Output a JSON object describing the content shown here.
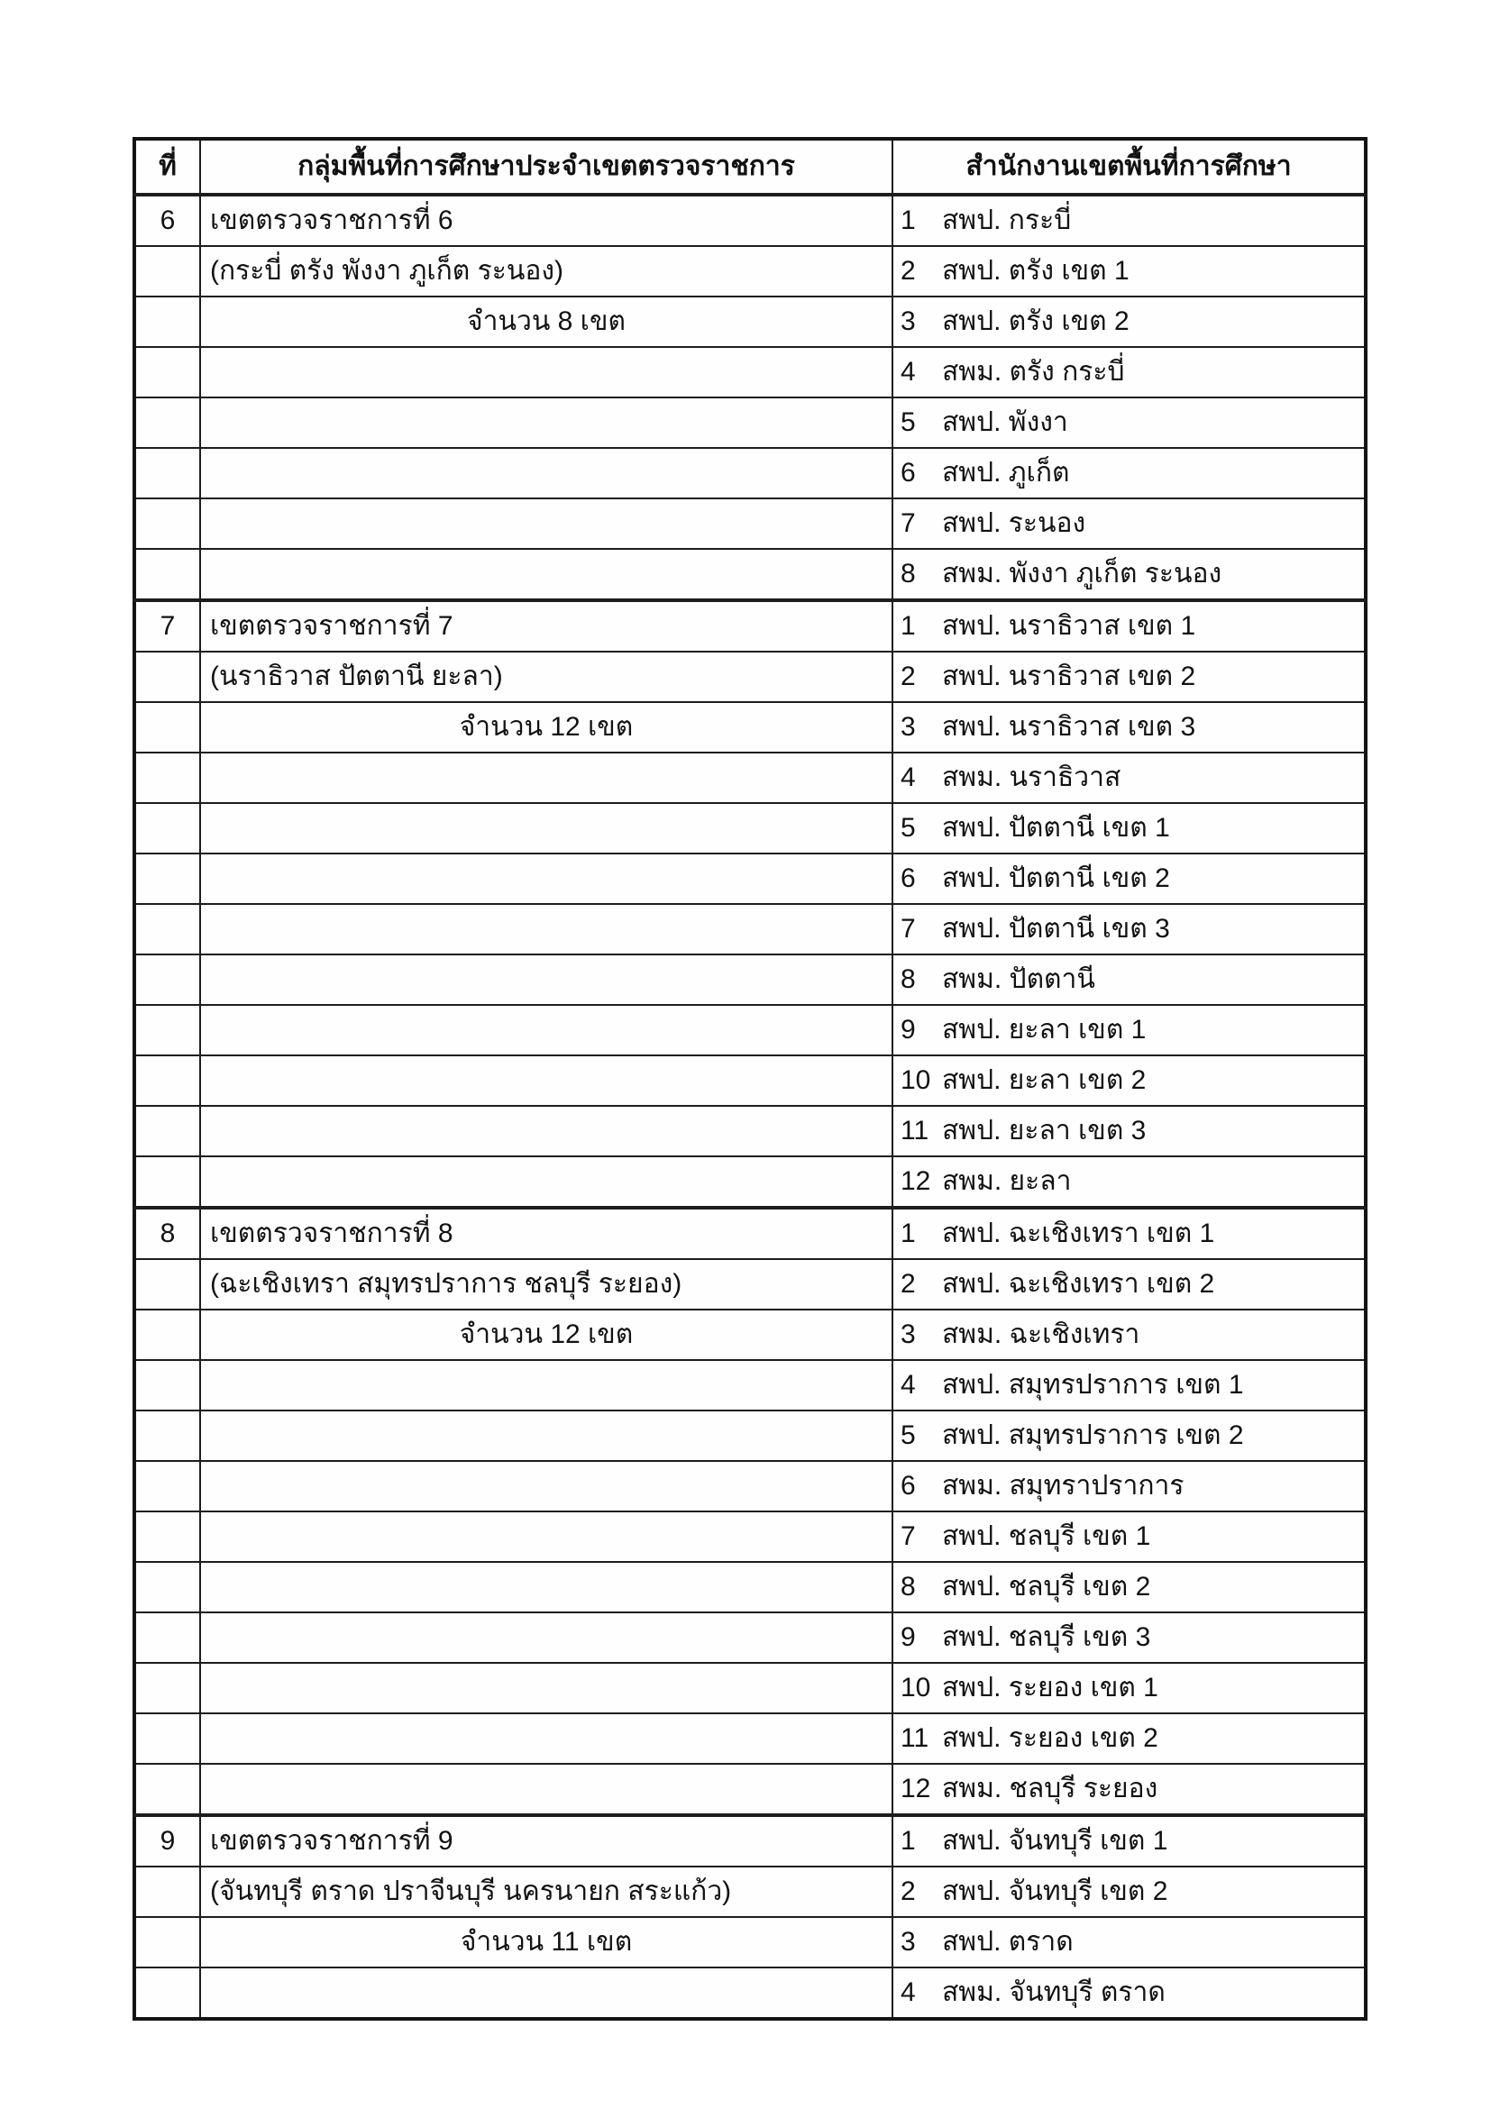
{
  "colors": {
    "border": "#1a1a1a",
    "text": "#121212",
    "background": "#ffffff"
  },
  "table": {
    "header": {
      "no": "ที่",
      "group": "กลุ่มพื้นที่การศึกษาประจำเขตตรวจราชการ",
      "office": "สำนักงานเขตพื้นที่การศึกษา"
    },
    "sections": [
      {
        "no": "6",
        "title": "เขตตรวจราชการที่ 6",
        "provinces": "(กระบี่ ตรัง พังงา ภูเก็ต ระนอง)",
        "count_label": "จำนวน 8 เขต",
        "offices": [
          {
            "n": "1",
            "name": "สพป. กระบี่"
          },
          {
            "n": "2",
            "name": "สพป. ตรัง เขต 1"
          },
          {
            "n": "3",
            "name": "สพป. ตรัง เขต 2"
          },
          {
            "n": "4",
            "name": "สพม. ตรัง กระบี่"
          },
          {
            "n": "5",
            "name": "สพป. พังงา"
          },
          {
            "n": "6",
            "name": "สพป. ภูเก็ต"
          },
          {
            "n": "7",
            "name": "สพป. ระนอง"
          },
          {
            "n": "8",
            "name": "สพม. พังงา ภูเก็ต ระนอง"
          }
        ]
      },
      {
        "no": "7",
        "title": "เขตตรวจราชการที่ 7",
        "provinces": "(นราธิวาส ปัตตานี ยะลา)",
        "count_label": "จำนวน 12 เขต",
        "offices": [
          {
            "n": "1",
            "name": "สพป. นราธิวาส เขต 1"
          },
          {
            "n": "2",
            "name": "สพป. นราธิวาส เขต 2"
          },
          {
            "n": "3",
            "name": "สพป. นราธิวาส เขต 3"
          },
          {
            "n": "4",
            "name": "สพม. นราธิวาส"
          },
          {
            "n": "5",
            "name": "สพป. ปัตตานี เขต 1"
          },
          {
            "n": "6",
            "name": "สพป. ปัตตานี เขต 2"
          },
          {
            "n": "7",
            "name": "สพป. ปัตตานี เขต 3"
          },
          {
            "n": "8",
            "name": "สพม. ปัตตานี"
          },
          {
            "n": "9",
            "name": "สพป. ยะลา เขต 1"
          },
          {
            "n": "10",
            "name": "สพป. ยะลา เขต 2"
          },
          {
            "n": "11",
            "name": "สพป. ยะลา เขต 3"
          },
          {
            "n": "12",
            "name": "สพม. ยะลา"
          }
        ]
      },
      {
        "no": "8",
        "title": "เขตตรวจราชการที่ 8",
        "provinces": "(ฉะเชิงเทรา สมุทรปราการ ชลบุรี ระยอง)",
        "count_label": "จำนวน 12 เขต",
        "offices": [
          {
            "n": "1",
            "name": "สพป. ฉะเชิงเทรา เขต 1"
          },
          {
            "n": "2",
            "name": "สพป. ฉะเชิงเทรา เขต 2"
          },
          {
            "n": "3",
            "name": "สพม. ฉะเชิงเทรา"
          },
          {
            "n": "4",
            "name": "สพป. สมุทรปราการ เขต 1"
          },
          {
            "n": "5",
            "name": "สพป. สมุทรปราการ เขต 2"
          },
          {
            "n": "6",
            "name": "สพม. สมุทราปราการ"
          },
          {
            "n": "7",
            "name": "สพป. ชลบุรี เขต 1"
          },
          {
            "n": "8",
            "name": "สพป. ชลบุรี เขต 2"
          },
          {
            "n": "9",
            "name": "สพป. ชลบุรี เขต 3"
          },
          {
            "n": "10",
            "name": "สพป. ระยอง เขต 1"
          },
          {
            "n": "11",
            "name": "สพป. ระยอง เขต 2"
          },
          {
            "n": "12",
            "name": "สพม. ชลบุรี ระยอง"
          }
        ]
      },
      {
        "no": "9",
        "title": "เขตตรวจราชการที่ 9",
        "provinces": "(จันทบุรี ตราด ปราจีนบุรี นครนายก สระแก้ว)",
        "count_label": "จำนวน 11 เขต",
        "offices": [
          {
            "n": "1",
            "name": "สพป. จันทบุรี เขต 1"
          },
          {
            "n": "2",
            "name": "สพป. จันทบุรี เขต 2"
          },
          {
            "n": "3",
            "name": "สพป. ตราด"
          },
          {
            "n": "4",
            "name": "สพม. จันทบุรี ตราด"
          }
        ]
      }
    ]
  }
}
